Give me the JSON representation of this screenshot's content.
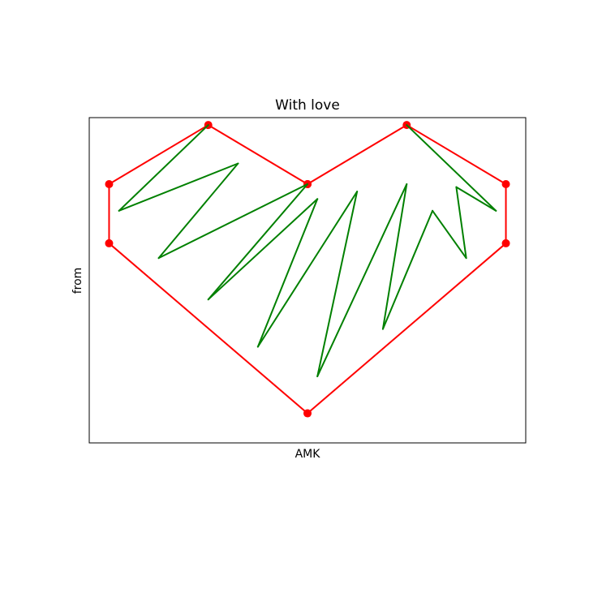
{
  "chart_data": {
    "type": "line",
    "title": "With love",
    "xlabel": "AMK",
    "ylabel": "from",
    "xlim": [
      -1.1,
      1.1
    ],
    "ylim": [
      -1.15,
      1.05
    ],
    "ticks_visible": false,
    "series": [
      {
        "color": "#ff0000",
        "marker": "circle",
        "x": [
          0,
          0.5,
          1,
          1,
          0,
          -1,
          -1,
          -0.5,
          0
        ],
        "y": [
          0.6,
          1,
          0.6,
          0.2,
          -0.95,
          0.2,
          0.6,
          1,
          0.6
        ]
      },
      {
        "color": "#008000",
        "marker": "none",
        "x": [
          -0.5,
          -0.95,
          -0.35,
          -0.75,
          0,
          -0.5,
          0.05,
          -0.25,
          0.25,
          0.05,
          0.5,
          0.38,
          0.63,
          0.8,
          0.75,
          0.95,
          0.5
        ],
        "y": [
          1,
          0.42,
          0.74,
          0.1,
          0.6,
          -0.18,
          0.5,
          -0.5,
          0.55,
          -0.7,
          0.6,
          -0.38,
          0.42,
          0.1,
          0.58,
          0.42,
          1
        ]
      }
    ]
  }
}
